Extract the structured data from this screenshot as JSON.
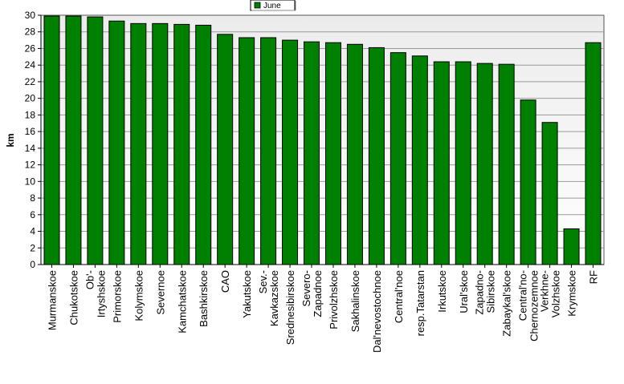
{
  "chart_data": {
    "type": "bar",
    "ylabel": "km",
    "xlabel": "",
    "ylim": [
      0,
      30
    ],
    "yticks": [
      0,
      2,
      4,
      6,
      8,
      10,
      12,
      14,
      16,
      18,
      20,
      22,
      24,
      26,
      28,
      30
    ],
    "grid": true,
    "legend_position": "top",
    "categories": [
      "Murmanskoe",
      "Chukotskoe",
      "Ob'-Irtyshskoe",
      "Primorskoe",
      "Kolymskoe",
      "Severnoe",
      "Kamchatskoe",
      "Bashkirskoe",
      "CAO",
      "Yakutskoe",
      "Sev.-Kavkazskoe",
      "Srednesibirskoe",
      "Severo-Zapadnoe",
      "Privolzhskoe",
      "Sakhalinskoe",
      "Dal'nevostochnoe",
      "Central'noe",
      "resp.Tatarstan",
      "Irkutskoe",
      "Ural'skoe",
      "Zapadno-Sibirskoe",
      "Zabaykal'skoe",
      "Central'no-Chernozemnoe",
      "Verkhne-Volzhskoe",
      "Krymskoe",
      "RF"
    ],
    "series": [
      {
        "name": "June",
        "color": "#008000",
        "values": [
          29.9,
          29.9,
          29.8,
          29.3,
          29.0,
          29.0,
          28.9,
          28.8,
          27.7,
          27.3,
          27.3,
          27.0,
          26.8,
          26.7,
          26.5,
          26.1,
          25.5,
          25.1,
          24.4,
          24.4,
          24.2,
          24.1,
          19.8,
          17.1,
          4.3,
          26.7
        ]
      }
    ]
  }
}
